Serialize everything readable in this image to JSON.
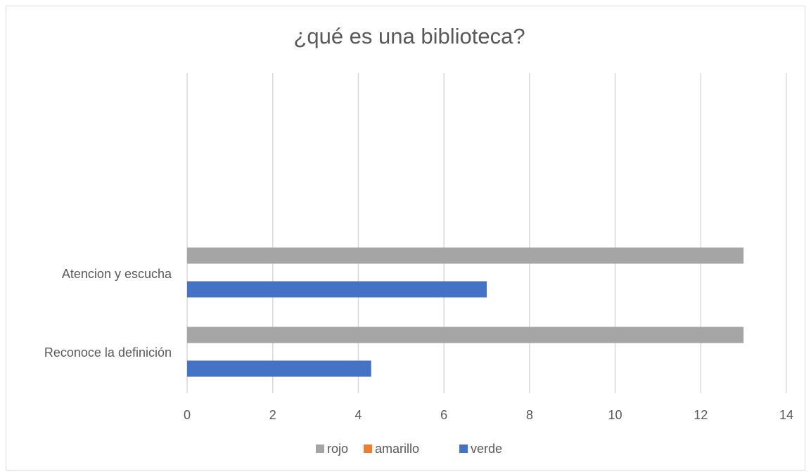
{
  "chart_data": {
    "type": "bar",
    "orientation": "horizontal",
    "title": "¿qué es una biblioteca?",
    "xlabel": "",
    "ylabel": "",
    "categories": [
      "Reconoce la definición",
      "Atencion y escucha"
    ],
    "series": [
      {
        "name": "rojo",
        "color": "#a5a5a5",
        "values": [
          13,
          13
        ]
      },
      {
        "name": "amarillo",
        "color": "#ed7d31",
        "values": [
          0,
          0
        ]
      },
      {
        "name": "verde",
        "color": "#4472c4",
        "values": [
          4.3,
          7
        ]
      }
    ],
    "xlim": [
      0,
      14
    ],
    "x_ticks": [
      "0",
      "2",
      "4",
      "6",
      "8",
      "10",
      "12",
      "14"
    ],
    "grid": "vertical",
    "legend_position": "bottom"
  }
}
